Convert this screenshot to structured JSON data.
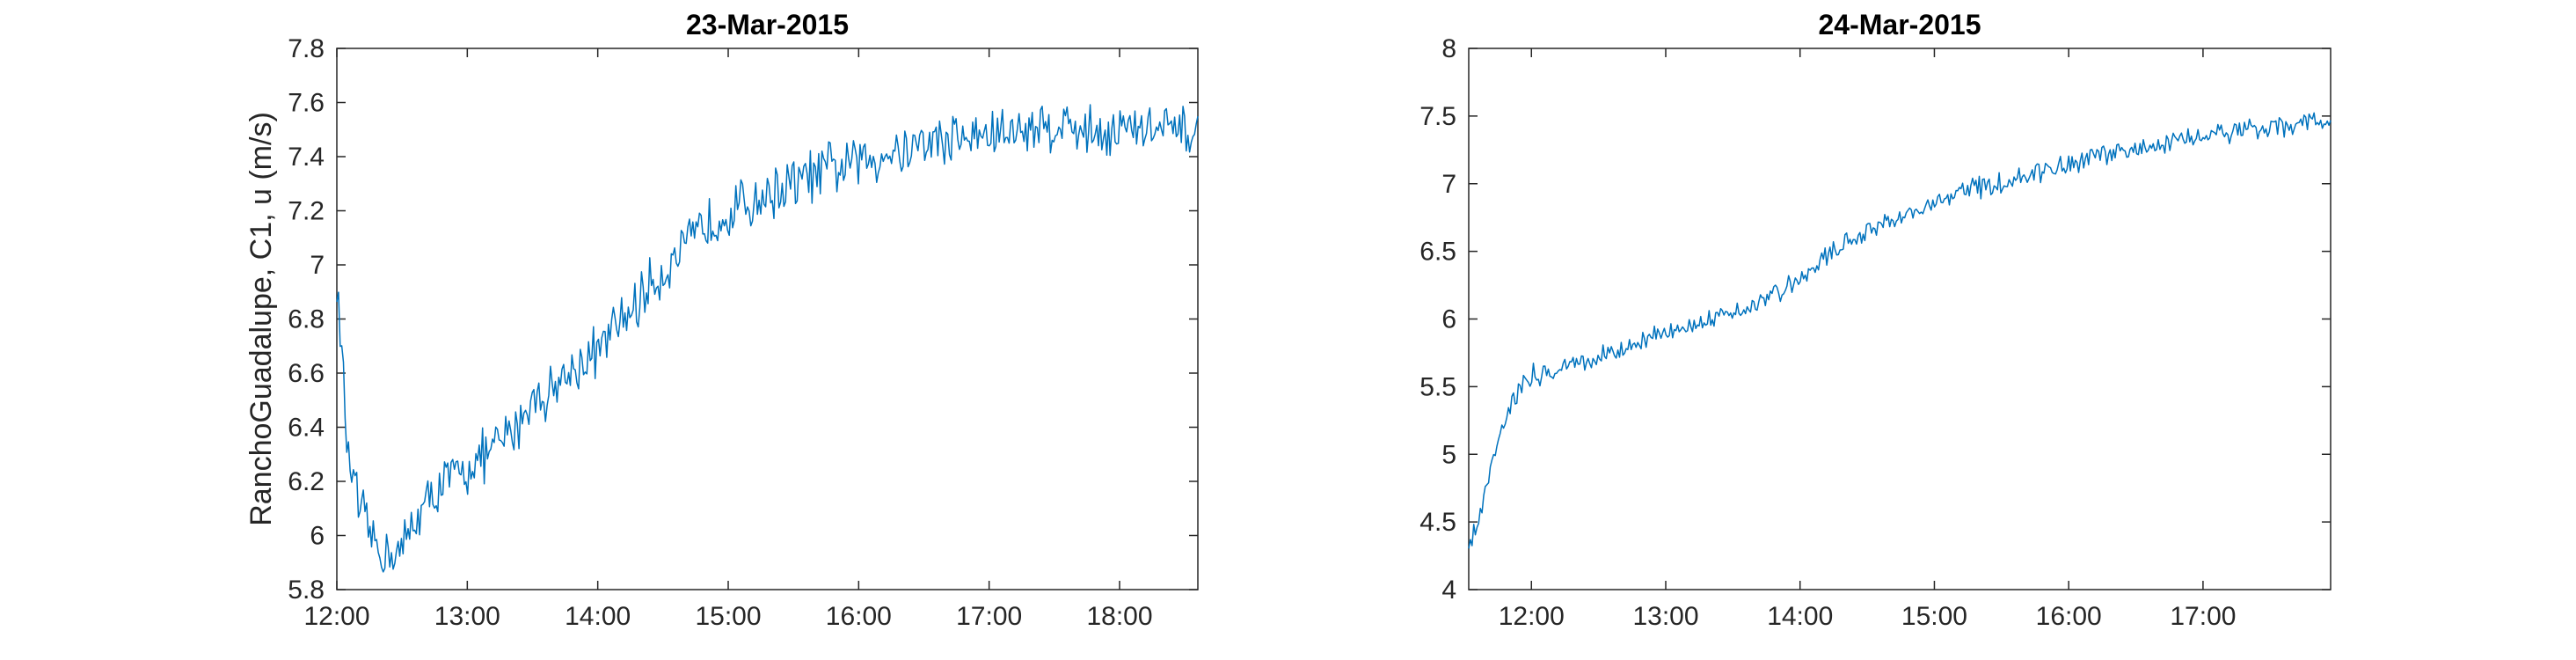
{
  "chart_data": [
    {
      "type": "line",
      "title": "23-Mar-2015",
      "ylabel": "RanchoGuadalupe, C1, u (m/s)",
      "xlabel": "",
      "x_range": [
        "12:00",
        "18:36"
      ],
      "ylim": [
        5.8,
        7.8
      ],
      "x_ticks": [
        "12:00",
        "13:00",
        "14:00",
        "15:00",
        "16:00",
        "17:00",
        "18:00"
      ],
      "y_ticks": [
        "5.8",
        "6",
        "6.2",
        "6.4",
        "6.6",
        "6.8",
        "7",
        "7.2",
        "7.4",
        "7.6",
        "7.8"
      ],
      "grid": false,
      "line_color": "#0072BD",
      "series": [
        {
          "x": [
            "12:00",
            "12:05",
            "12:10",
            "12:15",
            "12:20",
            "12:25",
            "12:30",
            "12:35",
            "12:40",
            "12:45",
            "12:50",
            "12:55",
            "13:00",
            "13:10",
            "13:20",
            "13:30",
            "13:40",
            "13:50",
            "14:00",
            "14:10",
            "14:20",
            "14:30",
            "14:40",
            "14:50",
            "15:00",
            "15:15",
            "15:30",
            "15:45",
            "16:00",
            "16:15",
            "16:30",
            "16:45",
            "17:00",
            "17:15",
            "17:30",
            "17:45",
            "18:00",
            "18:15",
            "18:30",
            "18:36"
          ],
          "values": [
            6.95,
            6.3,
            6.1,
            6.0,
            5.95,
            5.93,
            5.94,
            6.05,
            6.1,
            6.15,
            6.2,
            6.22,
            6.25,
            6.3,
            6.38,
            6.5,
            6.55,
            6.62,
            6.68,
            6.78,
            6.88,
            6.98,
            7.05,
            7.15,
            7.2,
            7.25,
            7.3,
            7.35,
            7.38,
            7.42,
            7.45,
            7.47,
            7.48,
            7.5,
            7.52,
            7.5,
            7.5,
            7.5,
            7.48,
            7.5
          ]
        }
      ]
    },
    {
      "type": "line",
      "title": "24-Mar-2015",
      "ylabel": "",
      "xlabel": "",
      "x_range": [
        "11:32",
        "17:57"
      ],
      "ylim": [
        4,
        8
      ],
      "x_ticks": [
        "12:00",
        "13:00",
        "14:00",
        "15:00",
        "16:00",
        "17:00"
      ],
      "y_ticks": [
        "4",
        "4.5",
        "5",
        "5.5",
        "6",
        "6.5",
        "7",
        "7.5",
        "8"
      ],
      "grid": false,
      "line_color": "#0072BD",
      "series": [
        {
          "x": [
            "11:32",
            "11:36",
            "11:40",
            "11:45",
            "11:50",
            "11:55",
            "12:00",
            "12:15",
            "12:30",
            "12:45",
            "13:00",
            "13:15",
            "13:30",
            "13:45",
            "14:00",
            "14:15",
            "14:30",
            "14:45",
            "15:00",
            "15:15",
            "15:30",
            "15:45",
            "16:00",
            "16:15",
            "16:30",
            "16:45",
            "17:00",
            "17:15",
            "17:30",
            "17:45",
            "17:57"
          ],
          "values": [
            4.3,
            4.5,
            4.8,
            5.1,
            5.35,
            5.5,
            5.58,
            5.65,
            5.72,
            5.8,
            5.9,
            6.0,
            6.05,
            6.15,
            6.3,
            6.5,
            6.65,
            6.75,
            6.85,
            6.95,
            7.0,
            7.08,
            7.15,
            7.2,
            7.25,
            7.3,
            7.35,
            7.4,
            7.42,
            7.45,
            7.45
          ]
        }
      ]
    }
  ]
}
